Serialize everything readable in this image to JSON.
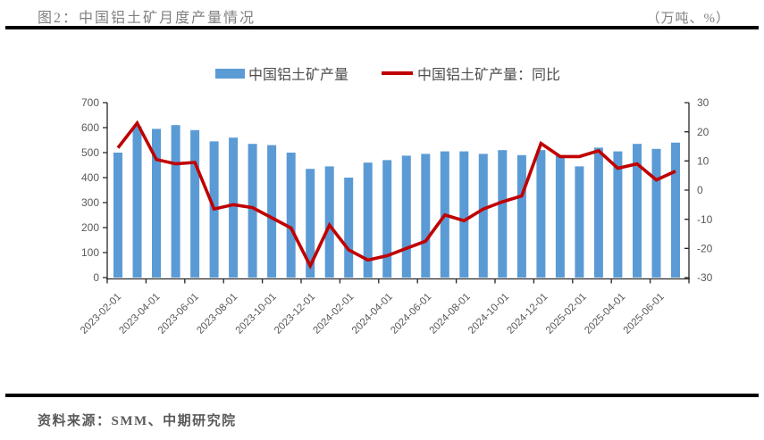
{
  "header": {
    "title": "图2：中国铝土矿月度产量情况",
    "unit_note": "（万吨、%）"
  },
  "legend": [
    {
      "label": "中国铝土矿产量",
      "type": "bar",
      "color": "#5B9BD5"
    },
    {
      "label": "中国铝土矿产量：同比",
      "type": "line",
      "color": "#C00000"
    }
  ],
  "footer": {
    "source": "资料来源：SMM、中期研究院"
  },
  "chart_data": {
    "type": "bar",
    "title": "中国铝土矿月度产量情况",
    "grid": false,
    "legend_position": "top",
    "categories": [
      "2023-02-01",
      "2023-03-01",
      "2023-04-01",
      "2023-05-01",
      "2023-06-01",
      "2023-07-01",
      "2023-08-01",
      "2023-09-01",
      "2023-10-01",
      "2023-11-01",
      "2023-12-01",
      "2024-01-01",
      "2024-02-01",
      "2024-03-01",
      "2024-04-01",
      "2024-05-01",
      "2024-06-01",
      "2024-07-01",
      "2024-08-01",
      "2024-09-01",
      "2024-10-01",
      "2024-11-01",
      "2024-12-01",
      "2025-01-01",
      "2025-02-01",
      "2025-03-01",
      "2025-04-01",
      "2025-05-01",
      "2025-06-01",
      "2025-07-01"
    ],
    "x_tick_labels": [
      "2023-02-01",
      "2023-04-01",
      "2023-06-01",
      "2023-08-01",
      "2023-10-01",
      "2023-12-01",
      "2024-02-01",
      "2024-04-01",
      "2024-06-01",
      "2024-08-01",
      "2024-10-01",
      "2024-12-01",
      "2025-02-01",
      "2025-04-01",
      "2025-06-01"
    ],
    "series": [
      {
        "name": "中国铝土矿产量",
        "type": "bar",
        "axis": "left",
        "color": "#5B9BD5",
        "values": [
          500,
          605,
          595,
          610,
          590,
          545,
          560,
          535,
          530,
          500,
          435,
          445,
          400,
          460,
          470,
          488,
          495,
          505,
          505,
          495,
          510,
          490,
          510,
          490,
          445,
          520,
          505,
          535,
          515,
          540
        ]
      },
      {
        "name": "中国铝土矿产量：同比",
        "type": "line",
        "axis": "right",
        "color": "#C00000",
        "values": [
          14.5,
          23,
          10.5,
          9,
          9.5,
          -6.5,
          -5,
          -6,
          -9.5,
          -13,
          -26,
          -12,
          -20.5,
          -24,
          -22.5,
          -20,
          -17.5,
          -8.5,
          -10.5,
          -6.5,
          -4,
          -2,
          16,
          11.5,
          11.5,
          13.5,
          7.5,
          9,
          3.5,
          6.5
        ]
      }
    ],
    "left_axis": {
      "min": 0,
      "max": 700,
      "step": 100,
      "unit": "万吨",
      "tick_labels": [
        "0",
        "100",
        "200",
        "300",
        "400",
        "500",
        "600",
        "700"
      ]
    },
    "right_axis": {
      "min": -30,
      "max": 30,
      "step": 10,
      "unit": "%",
      "tick_labels": [
        "-30",
        "-20",
        "-10",
        "0",
        "10",
        "20",
        "30"
      ]
    }
  }
}
